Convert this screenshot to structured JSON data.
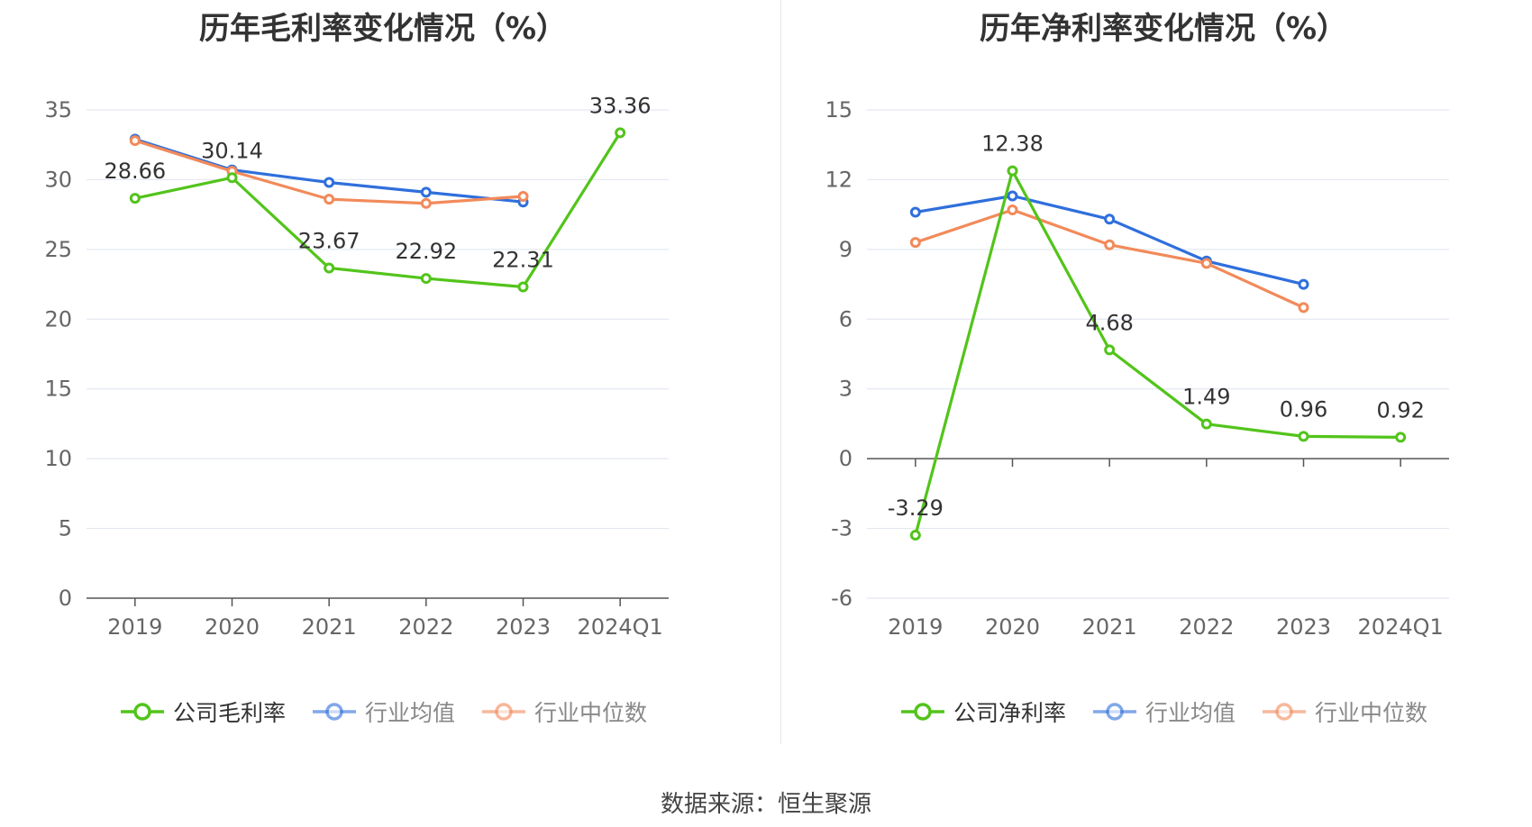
{
  "chart_data": [
    {
      "type": "line",
      "title": "历年毛利率变化情况（%）",
      "categories": [
        "2019",
        "2020",
        "2021",
        "2022",
        "2023",
        "2024Q1"
      ],
      "ylim": [
        0,
        35
      ],
      "yticks": [
        0,
        5,
        10,
        15,
        20,
        25,
        30,
        35
      ],
      "grid": true,
      "legend_position": "bottom",
      "series": [
        {
          "name": "公司毛利率",
          "color": "#52c41a",
          "values": [
            28.66,
            30.14,
            23.67,
            22.92,
            22.31,
            33.36
          ],
          "show_labels": true
        },
        {
          "name": "行业均值",
          "color": "#2f6fdc",
          "values": [
            32.9,
            30.7,
            29.8,
            29.1,
            28.4,
            null
          ],
          "show_labels": false
        },
        {
          "name": "行业中位数",
          "color": "#f28a5a",
          "values": [
            32.8,
            30.6,
            28.6,
            28.3,
            28.8,
            null
          ],
          "show_labels": false
        }
      ]
    },
    {
      "type": "line",
      "title": "历年净利率变化情况（%）",
      "categories": [
        "2019",
        "2020",
        "2021",
        "2022",
        "2023",
        "2024Q1"
      ],
      "ylim": [
        -6,
        15
      ],
      "yticks": [
        -6,
        -3,
        0,
        3,
        6,
        9,
        12,
        15
      ],
      "grid": true,
      "legend_position": "bottom",
      "series": [
        {
          "name": "公司净利率",
          "color": "#52c41a",
          "values": [
            -3.29,
            12.38,
            4.68,
            1.49,
            0.96,
            0.92
          ],
          "show_labels": true
        },
        {
          "name": "行业均值",
          "color": "#2f6fdc",
          "values": [
            10.6,
            11.3,
            10.3,
            8.5,
            7.5,
            null
          ],
          "show_labels": false
        },
        {
          "name": "行业中位数",
          "color": "#f28a5a",
          "values": [
            9.3,
            10.7,
            9.2,
            8.4,
            6.5,
            null
          ],
          "show_labels": false
        }
      ]
    }
  ],
  "source": "数据来源：恒生聚源",
  "colors": {
    "grid": "#e3e8f0",
    "axis": "#555555",
    "inactive_legend_text": "#888888",
    "active_legend_text": "#333333"
  }
}
